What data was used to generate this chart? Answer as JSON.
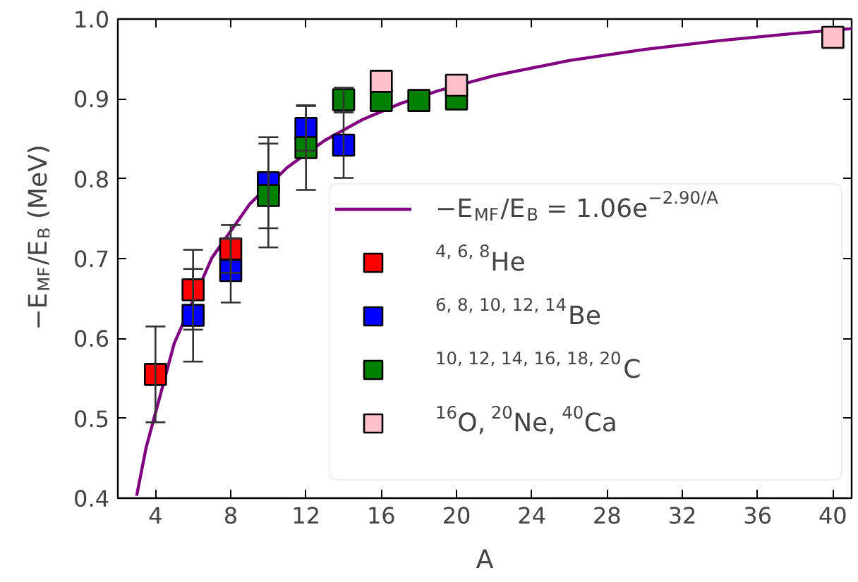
{
  "chart_data": {
    "type": "scatter",
    "xlabel": "A",
    "ylabel": "−E$_{MF}$/E$_{B}$ (MeV)",
    "xlim": [
      2,
      41
    ],
    "ylim": [
      0.4,
      1.0
    ],
    "xticks": [
      4,
      8,
      12,
      16,
      20,
      24,
      28,
      32,
      36,
      40
    ],
    "yticks": [
      0.4,
      0.5,
      0.6,
      0.7,
      0.8,
      0.9,
      {
        "value": 1.0,
        "label": "1.0"
      }
    ],
    "marker": "square",
    "grid": false,
    "legend": "bottom right",
    "series": [
      {
        "type": "line",
        "marker": "none",
        "name": "−E$_{MF}$/E$_{B}$ = 1.06e$^{−2.90/A}$",
        "color": "#800080",
        "x": [
          3,
          3.5,
          5,
          7,
          9,
          11,
          13,
          15,
          17,
          19,
          22,
          26,
          30,
          34,
          38,
          41
        ],
        "values": [
          0.403,
          0.463,
          0.594,
          0.701,
          0.768,
          0.814,
          0.848,
          0.874,
          0.894,
          0.91,
          0.929,
          0.948,
          0.962,
          0.973,
          0.982,
          0.988
        ]
      },
      {
        "name": "$^{4, 6, 8}$He",
        "color": "#ff0000",
        "x": [
          4,
          6,
          8
        ],
        "values": [
          0.555,
          0.661,
          0.712
        ],
        "errors": [
          0.06,
          0.05,
          0.03
        ]
      },
      {
        "name": "$^{6, 8, 10, 12, 14}$Be",
        "color": "#0000ff",
        "x": [
          6,
          8,
          10,
          12,
          14
        ],
        "values": [
          0.629,
          0.685,
          0.795,
          0.863,
          0.842
        ],
        "errors": [
          0.058,
          0.04,
          0.057,
          0.028,
          0.041
        ]
      },
      {
        "name": "$^{10, 12, 14, 16, 18, 20}$C",
        "color": "#008000",
        "x": [
          10,
          12,
          14,
          16,
          18,
          20
        ],
        "values": [
          0.779,
          0.839,
          0.899,
          0.898,
          0.898,
          0.9
        ],
        "errors": [
          0.065,
          0.053,
          0.015,
          null,
          null,
          null
        ]
      },
      {
        "name": "$^{16}$O, $^{20}$Ne, $^{40}$Ca",
        "color": "#ffc0cb",
        "x": [
          16,
          20,
          40
        ],
        "values": [
          0.922,
          0.917,
          0.977
        ]
      }
    ]
  }
}
